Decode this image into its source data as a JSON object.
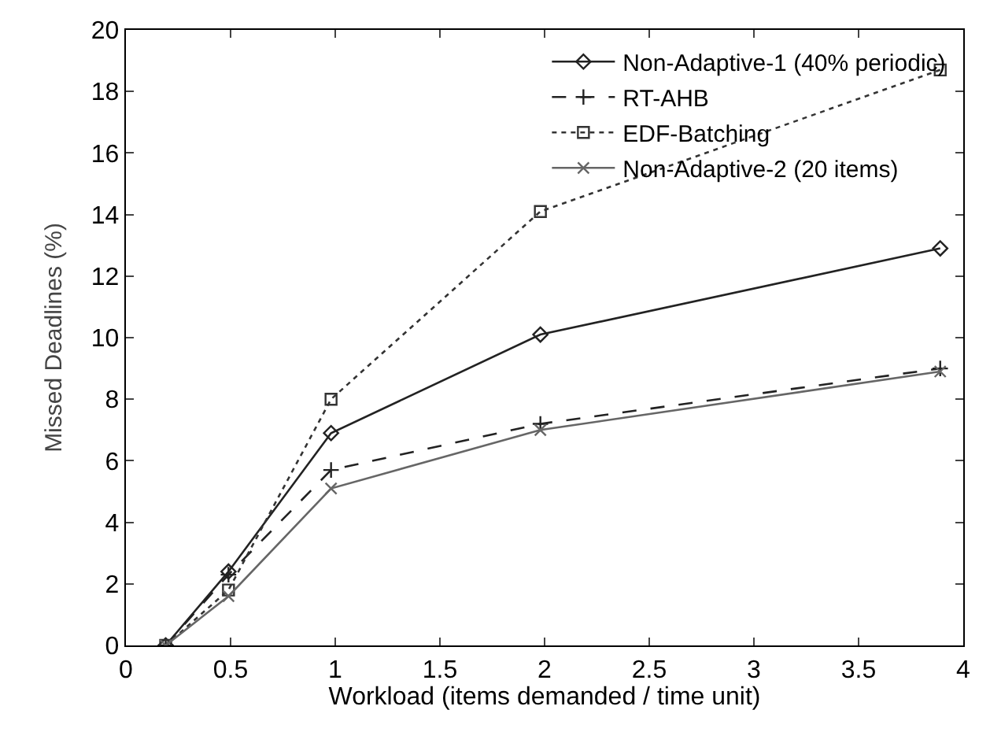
{
  "chart_data": {
    "type": "line",
    "xlabel": "Workload (items demanded / time unit)",
    "ylabel": "Missed Deadlines (%)",
    "x": [
      0.19,
      0.49,
      0.98,
      1.98,
      3.89
    ],
    "series": [
      {
        "name": "Non-Adaptive-1 (40% periodic)",
        "color": "#222222",
        "values": [
          0,
          2.4,
          6.9,
          10.1,
          12.9
        ],
        "marker": "diamond",
        "line_style": "solid"
      },
      {
        "name": "RT-AHB",
        "color": "#222222",
        "values": [
          0,
          2.3,
          5.7,
          7.2,
          9.0
        ],
        "marker": "cross",
        "line_style": "dashed"
      },
      {
        "name": "EDF-Batching",
        "color": "#333333",
        "values": [
          0,
          1.8,
          8.0,
          14.1,
          18.7
        ],
        "marker": "square",
        "line_style": "dotted"
      },
      {
        "name": "Non-Adaptive-2 (20 items)",
        "color": "#666666",
        "values": [
          0,
          1.6,
          5.1,
          7.0,
          8.9
        ],
        "marker": "x",
        "line_style": "solid"
      }
    ],
    "xlim": [
      0,
      4
    ],
    "xticks": [
      0,
      0.5,
      1,
      1.5,
      2,
      2.5,
      3,
      3.5,
      4
    ],
    "ylim": [
      0,
      20
    ],
    "yticks": [
      0,
      2,
      4,
      6,
      8,
      10,
      12,
      14,
      16,
      18,
      20
    ],
    "grid": false,
    "legend": "top right"
  }
}
